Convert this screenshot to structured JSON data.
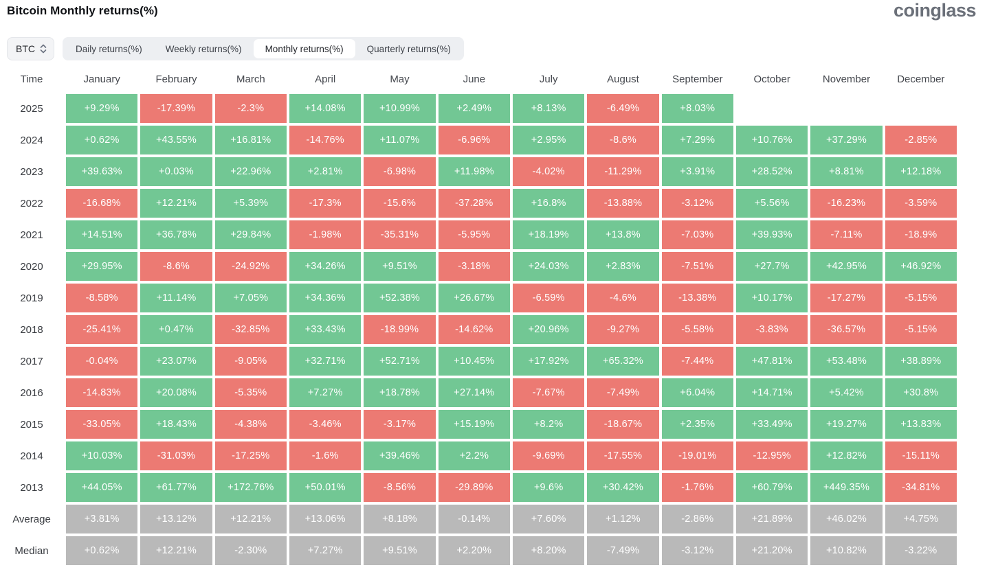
{
  "header": {
    "title": "Bitcoin Monthly returns(%)",
    "logo": "coinglass"
  },
  "controls": {
    "symbol_select": {
      "value": "BTC"
    },
    "tabs": [
      {
        "label": "Daily returns(%)",
        "active": false
      },
      {
        "label": "Weekly returns(%)",
        "active": false
      },
      {
        "label": "Monthly returns(%)",
        "active": true
      },
      {
        "label": "Quarterly returns(%)",
        "active": false
      }
    ]
  },
  "chart_data": {
    "type": "heatmap",
    "title": "Bitcoin Monthly returns(%)",
    "columns": [
      "Time",
      "January",
      "February",
      "March",
      "April",
      "May",
      "June",
      "July",
      "August",
      "September",
      "October",
      "November",
      "December"
    ],
    "colors": {
      "positive": "#72c794",
      "negative": "#ec7a73",
      "summary": "#b9b9b9",
      "cell_text": "#ffffff"
    },
    "rows": [
      {
        "label": "2025",
        "summary": false,
        "values": [
          "+9.29%",
          "-17.39%",
          "-2.3%",
          "+14.08%",
          "+10.99%",
          "+2.49%",
          "+8.13%",
          "-6.49%",
          "+8.03%",
          "",
          "",
          ""
        ]
      },
      {
        "label": "2024",
        "summary": false,
        "values": [
          "+0.62%",
          "+43.55%",
          "+16.81%",
          "-14.76%",
          "+11.07%",
          "-6.96%",
          "+2.95%",
          "-8.6%",
          "+7.29%",
          "+10.76%",
          "+37.29%",
          "-2.85%"
        ]
      },
      {
        "label": "2023",
        "summary": false,
        "values": [
          "+39.63%",
          "+0.03%",
          "+22.96%",
          "+2.81%",
          "-6.98%",
          "+11.98%",
          "-4.02%",
          "-11.29%",
          "+3.91%",
          "+28.52%",
          "+8.81%",
          "+12.18%"
        ]
      },
      {
        "label": "2022",
        "summary": false,
        "values": [
          "-16.68%",
          "+12.21%",
          "+5.39%",
          "-17.3%",
          "-15.6%",
          "-37.28%",
          "+16.8%",
          "-13.88%",
          "-3.12%",
          "+5.56%",
          "-16.23%",
          "-3.59%"
        ]
      },
      {
        "label": "2021",
        "summary": false,
        "values": [
          "+14.51%",
          "+36.78%",
          "+29.84%",
          "-1.98%",
          "-35.31%",
          "-5.95%",
          "+18.19%",
          "+13.8%",
          "-7.03%",
          "+39.93%",
          "-7.11%",
          "-18.9%"
        ]
      },
      {
        "label": "2020",
        "summary": false,
        "values": [
          "+29.95%",
          "-8.6%",
          "-24.92%",
          "+34.26%",
          "+9.51%",
          "-3.18%",
          "+24.03%",
          "+2.83%",
          "-7.51%",
          "+27.7%",
          "+42.95%",
          "+46.92%"
        ]
      },
      {
        "label": "2019",
        "summary": false,
        "values": [
          "-8.58%",
          "+11.14%",
          "+7.05%",
          "+34.36%",
          "+52.38%",
          "+26.67%",
          "-6.59%",
          "-4.6%",
          "-13.38%",
          "+10.17%",
          "-17.27%",
          "-5.15%"
        ]
      },
      {
        "label": "2018",
        "summary": false,
        "values": [
          "-25.41%",
          "+0.47%",
          "-32.85%",
          "+33.43%",
          "-18.99%",
          "-14.62%",
          "+20.96%",
          "-9.27%",
          "-5.58%",
          "-3.83%",
          "-36.57%",
          "-5.15%"
        ]
      },
      {
        "label": "2017",
        "summary": false,
        "values": [
          "-0.04%",
          "+23.07%",
          "-9.05%",
          "+32.71%",
          "+52.71%",
          "+10.45%",
          "+17.92%",
          "+65.32%",
          "-7.44%",
          "+47.81%",
          "+53.48%",
          "+38.89%"
        ]
      },
      {
        "label": "2016",
        "summary": false,
        "values": [
          "-14.83%",
          "+20.08%",
          "-5.35%",
          "+7.27%",
          "+18.78%",
          "+27.14%",
          "-7.67%",
          "-7.49%",
          "+6.04%",
          "+14.71%",
          "+5.42%",
          "+30.8%"
        ]
      },
      {
        "label": "2015",
        "summary": false,
        "values": [
          "-33.05%",
          "+18.43%",
          "-4.38%",
          "-3.46%",
          "-3.17%",
          "+15.19%",
          "+8.2%",
          "-18.67%",
          "+2.35%",
          "+33.49%",
          "+19.27%",
          "+13.83%"
        ]
      },
      {
        "label": "2014",
        "summary": false,
        "values": [
          "+10.03%",
          "-31.03%",
          "-17.25%",
          "-1.6%",
          "+39.46%",
          "+2.2%",
          "-9.69%",
          "-17.55%",
          "-19.01%",
          "-12.95%",
          "+12.82%",
          "-15.11%"
        ]
      },
      {
        "label": "2013",
        "summary": false,
        "values": [
          "+44.05%",
          "+61.77%",
          "+172.76%",
          "+50.01%",
          "-8.56%",
          "-29.89%",
          "+9.6%",
          "+30.42%",
          "-1.76%",
          "+60.79%",
          "+449.35%",
          "-34.81%"
        ]
      },
      {
        "label": "Average",
        "summary": true,
        "values": [
          "+3.81%",
          "+13.12%",
          "+12.21%",
          "+13.06%",
          "+8.18%",
          "-0.14%",
          "+7.60%",
          "+1.12%",
          "-2.86%",
          "+21.89%",
          "+46.02%",
          "+4.75%"
        ]
      },
      {
        "label": "Median",
        "summary": true,
        "values": [
          "+0.62%",
          "+12.21%",
          "-2.30%",
          "+7.27%",
          "+9.51%",
          "+2.20%",
          "+8.20%",
          "-7.49%",
          "-3.12%",
          "+21.20%",
          "+10.82%",
          "-3.22%"
        ]
      }
    ]
  }
}
